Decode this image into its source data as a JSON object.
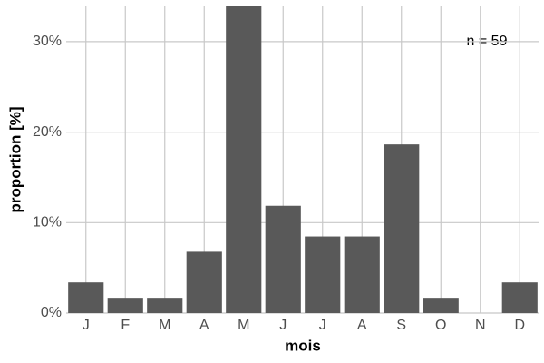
{
  "chart_data": {
    "type": "bar",
    "categories": [
      "J",
      "F",
      "M",
      "A",
      "M",
      "J",
      "J",
      "A",
      "S",
      "O",
      "N",
      "D"
    ],
    "values": [
      3.39,
      1.69,
      1.69,
      6.78,
      33.9,
      11.86,
      8.47,
      8.47,
      18.64,
      1.69,
      0,
      3.39
    ],
    "color": "#595959",
    "x_label": "mois",
    "y_label": "proportion [%]",
    "annotation": "n = 59",
    "ylim": [
      0,
      33.9
    ],
    "yticks": [
      {
        "value": 0,
        "label": "0%"
      },
      {
        "value": 10,
        "label": "10%"
      },
      {
        "value": 20,
        "label": "20%"
      },
      {
        "value": 30,
        "label": "30%"
      }
    ],
    "grid": true
  }
}
